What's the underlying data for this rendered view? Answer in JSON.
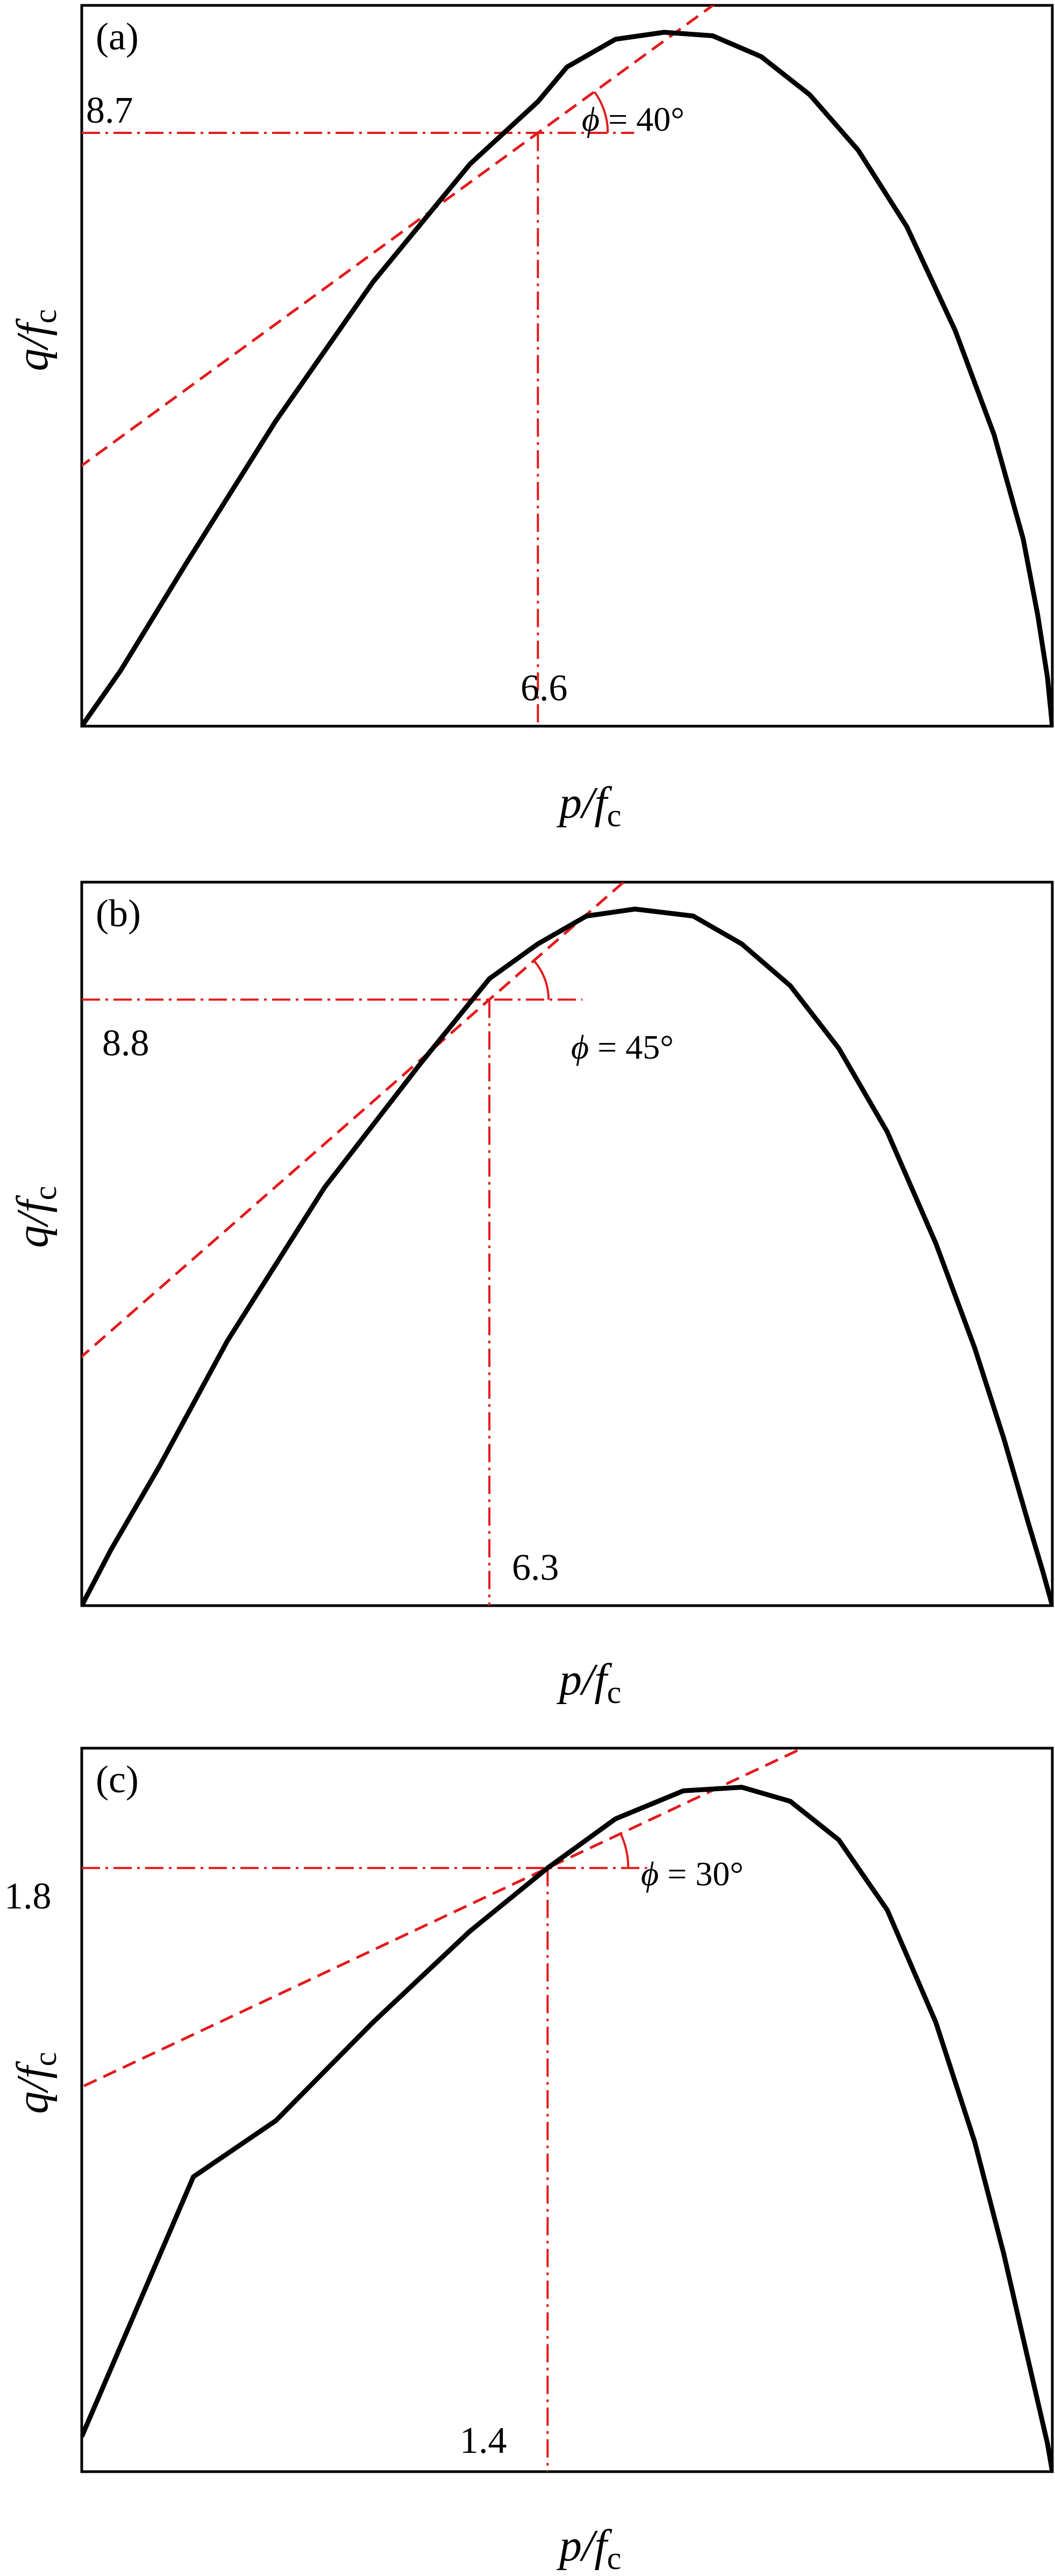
{
  "chart_data": [
    {
      "type": "line",
      "panel_label": "(a)",
      "xlabel": {
        "base": "p/f",
        "sub": "c"
      },
      "ylabel": {
        "base": "q/f",
        "sub": "c"
      },
      "grid": false,
      "curve": {
        "x": [
          0,
          0.04,
          0.11,
          0.2,
          0.3,
          0.4,
          0.47,
          0.5,
          0.55,
          0.6,
          0.65,
          0.7,
          0.75,
          0.8,
          0.85,
          0.9,
          0.94,
          0.97,
          0.985,
          0.995,
          1.0
        ],
        "y": [
          0,
          0.08,
          0.24,
          0.44,
          0.64,
          0.81,
          0.9,
          0.95,
          0.99,
          1.0,
          0.995,
          0.965,
          0.91,
          0.83,
          0.72,
          0.57,
          0.42,
          0.27,
          0.16,
          0.07,
          0.0
        ]
      },
      "tangent": {
        "p": 0.47,
        "q": 0.855,
        "slope": 1.02
      },
      "angle": {
        "symbol": "ϕ",
        "text": " = 40°"
      },
      "point_labels": {
        "q": "8.7",
        "p": "6.6"
      }
    },
    {
      "type": "line",
      "panel_label": "(b)",
      "xlabel": {
        "base": "p/f",
        "sub": "c"
      },
      "ylabel": {
        "base": "q/f",
        "sub": "c"
      },
      "grid": false,
      "curve": {
        "x": [
          0,
          0.03,
          0.08,
          0.15,
          0.25,
          0.35,
          0.42,
          0.47,
          0.52,
          0.57,
          0.63,
          0.68,
          0.73,
          0.78,
          0.83,
          0.88,
          0.92,
          0.95,
          0.975,
          0.99,
          0.998,
          1.0
        ],
        "y": [
          0,
          0.08,
          0.2,
          0.38,
          0.6,
          0.78,
          0.9,
          0.95,
          0.99,
          1.0,
          0.99,
          0.95,
          0.89,
          0.8,
          0.68,
          0.52,
          0.37,
          0.24,
          0.12,
          0.05,
          0.01,
          0.0
        ]
      },
      "tangent": {
        "p": 0.42,
        "q": 0.87,
        "slope": 1.22
      },
      "angle": {
        "symbol": "ϕ",
        "text": " = 45°"
      },
      "point_labels": {
        "q": "8.8",
        "p": "6.3"
      }
    },
    {
      "type": "line",
      "panel_label": "(c)",
      "xlabel": {
        "base": "p/f",
        "sub": "c"
      },
      "ylabel": {
        "base": "q/f",
        "sub": "c"
      },
      "grid": false,
      "curve": {
        "x": [
          0,
          0.115,
          0.2,
          0.3,
          0.4,
          0.48,
          0.55,
          0.62,
          0.68,
          0.73,
          0.78,
          0.83,
          0.88,
          0.92,
          0.95,
          0.97,
          0.985,
          0.995,
          1.0
        ],
        "y": [
          0.05,
          0.42,
          0.5,
          0.64,
          0.77,
          0.86,
          0.93,
          0.97,
          0.975,
          0.955,
          0.9,
          0.8,
          0.64,
          0.47,
          0.31,
          0.19,
          0.1,
          0.04,
          0.0
        ]
      },
      "tangent": {
        "p": 0.48,
        "q": 0.86,
        "slope": 0.65
      },
      "angle": {
        "symbol": "ϕ",
        "text": " = 30°"
      },
      "point_labels": {
        "q": "1.8",
        "p": "1.4"
      }
    }
  ],
  "style": {
    "curve_color": "#000000",
    "tangent_color": "#e31a1c",
    "guide_color": "#e31a1c"
  }
}
